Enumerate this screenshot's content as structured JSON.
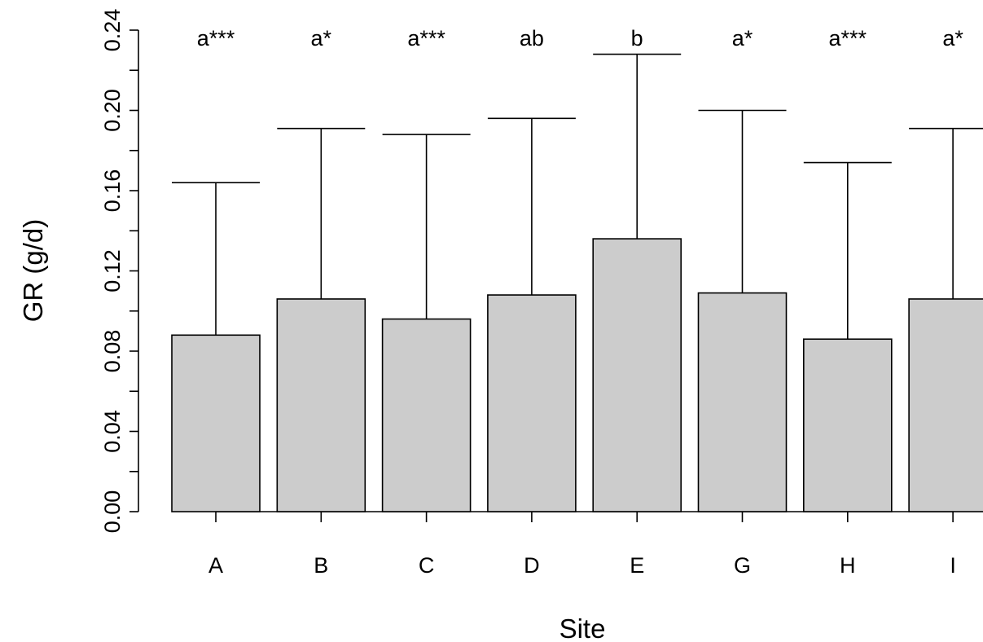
{
  "chart_data": {
    "type": "bar",
    "title": "",
    "xlabel": "Site",
    "ylabel": "GR (g/d)",
    "ylim": [
      0,
      0.24
    ],
    "y_ticks_labeled": [
      "0.00",
      "0.04",
      "0.08",
      "0.12",
      "0.16",
      "0.20",
      "0.24"
    ],
    "y_tick_values": [
      0,
      0.02,
      0.04,
      0.06,
      0.08,
      0.1,
      0.12,
      0.14,
      0.16,
      0.18,
      0.2,
      0.22,
      0.24
    ],
    "categories": [
      "A",
      "B",
      "C",
      "D",
      "E",
      "G",
      "H",
      "I"
    ],
    "values": [
      0.088,
      0.106,
      0.096,
      0.108,
      0.136,
      0.109,
      0.086,
      0.106
    ],
    "error_upper": [
      0.164,
      0.191,
      0.188,
      0.196,
      0.228,
      0.2,
      0.174,
      0.191
    ],
    "annotations": [
      "a***",
      "a*",
      "a***",
      "ab",
      "b",
      "a*",
      "a***",
      "a*"
    ],
    "grid": false,
    "legend": "none",
    "colors": {
      "bar_fill": "#cccccc",
      "bar_stroke": "#000000"
    }
  }
}
